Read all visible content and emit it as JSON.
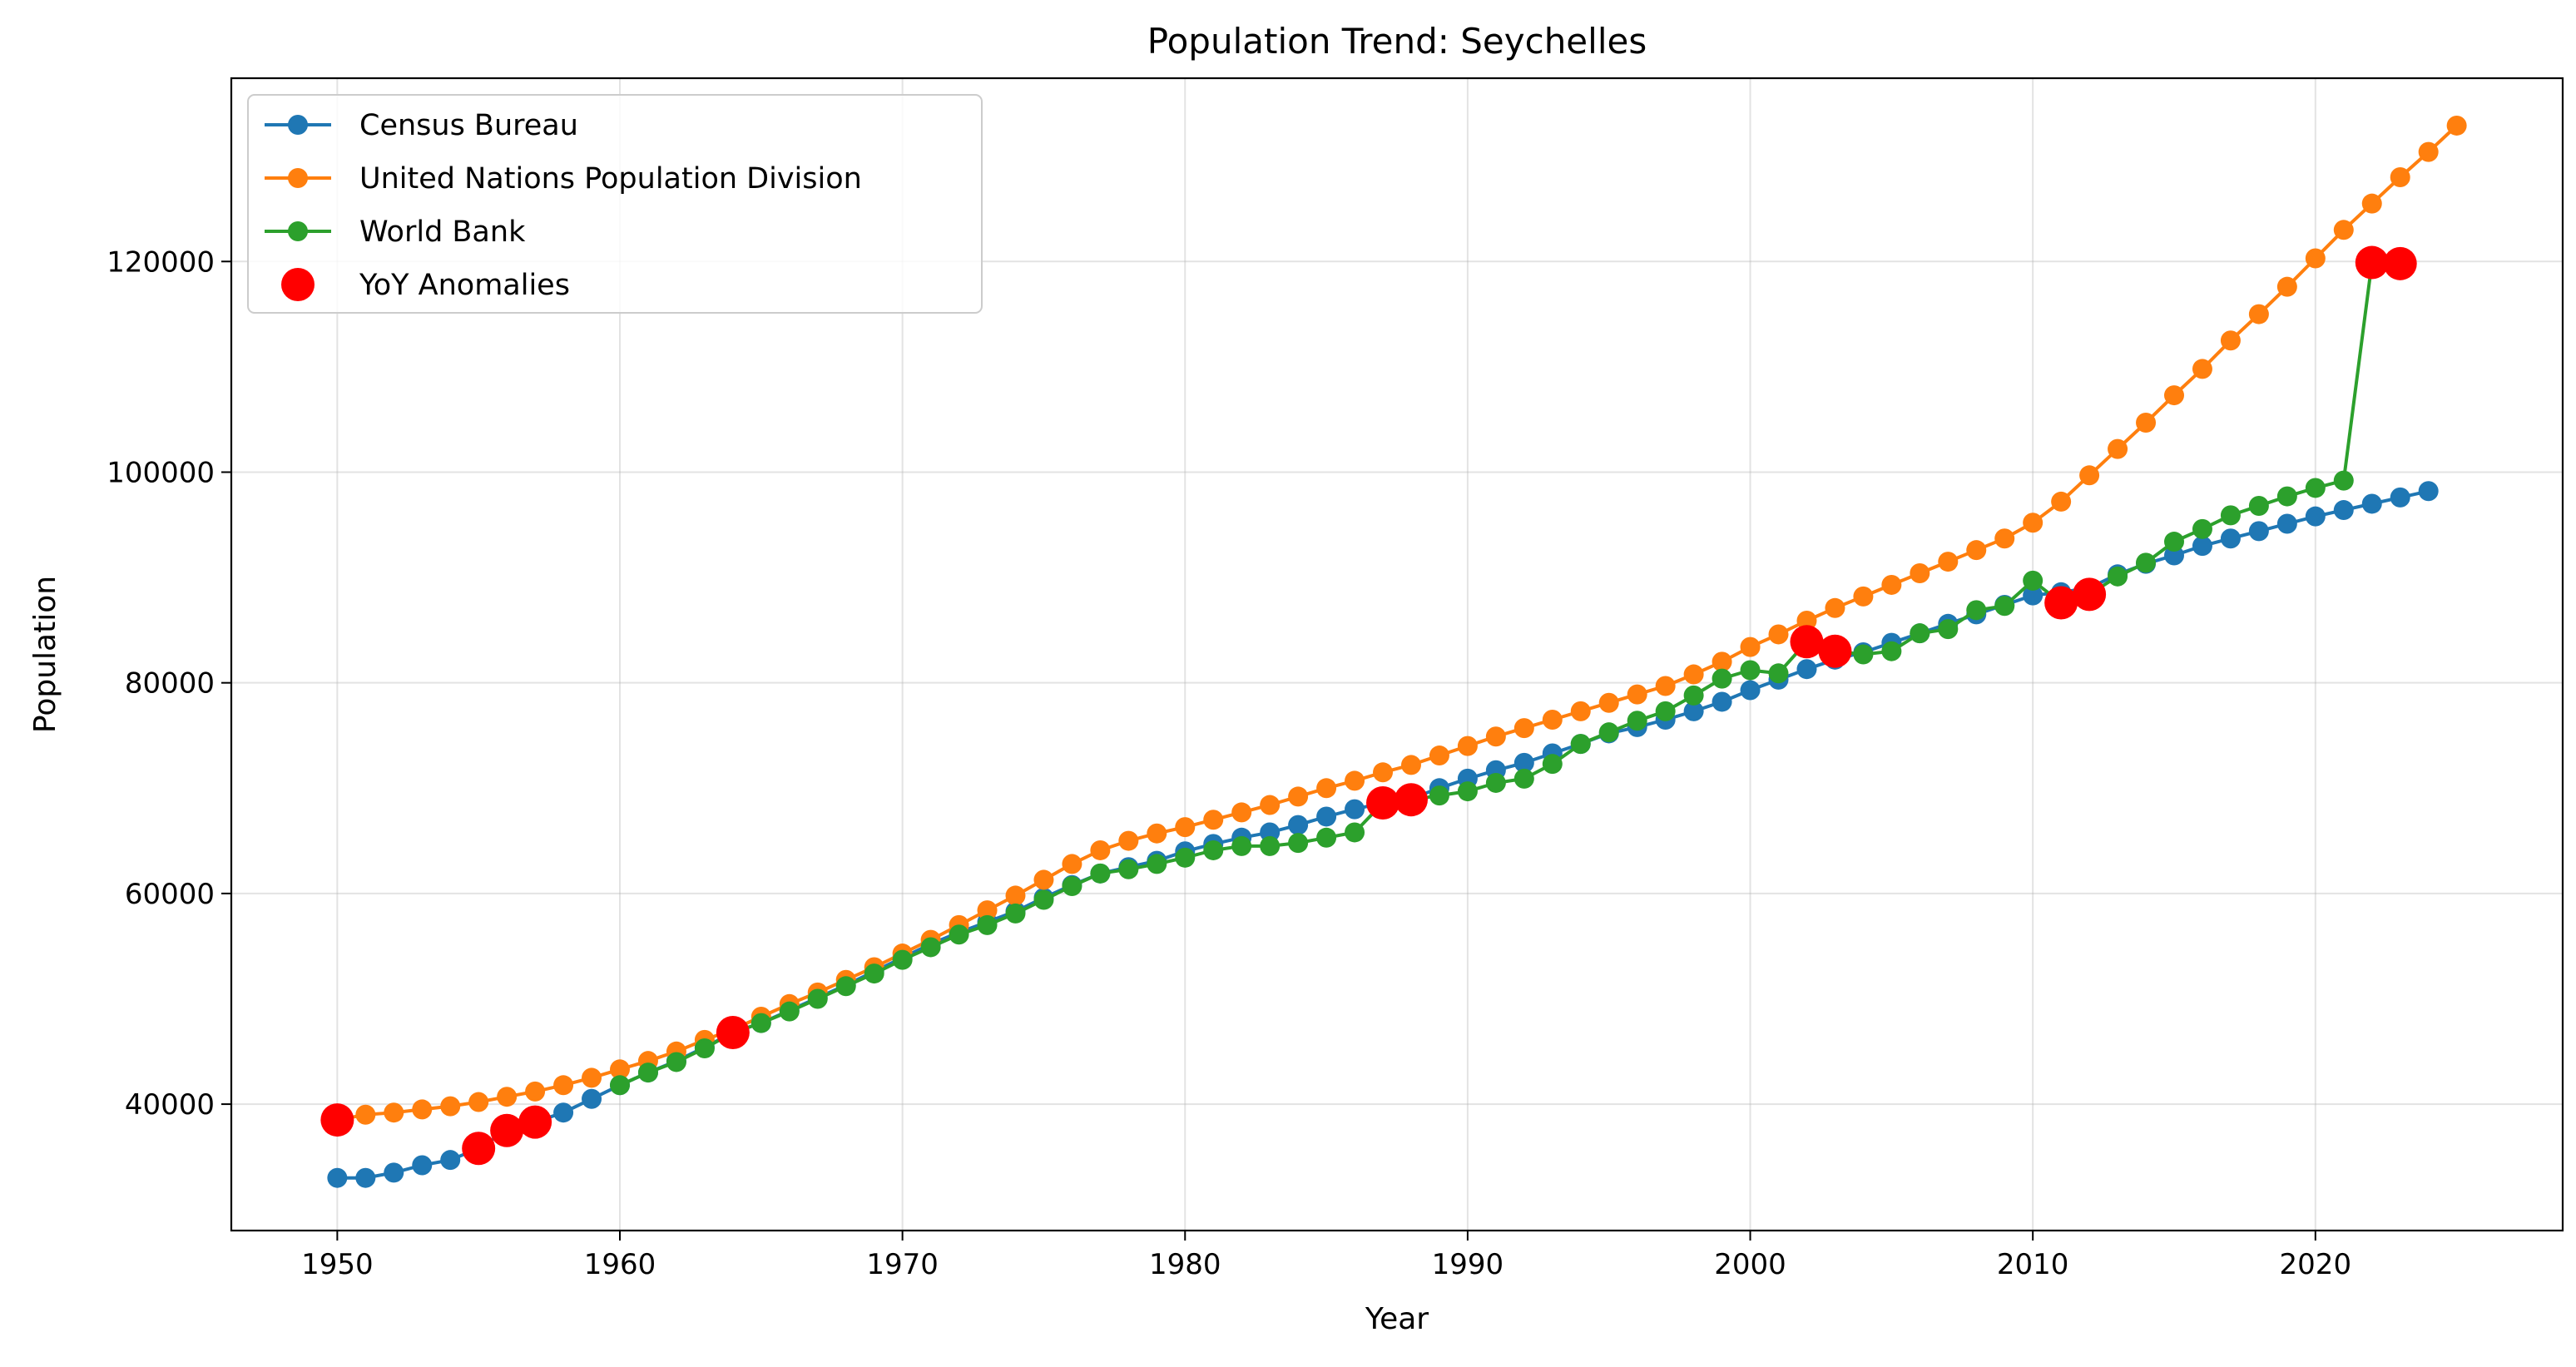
{
  "chart_data": {
    "type": "line",
    "title": "Population Trend: Seychelles",
    "xlabel": "Year",
    "ylabel": "Population",
    "xlim": [
      1946.25,
      2028.75
    ],
    "ylim": [
      28000,
      137400
    ],
    "x_ticks": [
      "1950",
      "1960",
      "1970",
      "1980",
      "1990",
      "2000",
      "2010",
      "2020"
    ],
    "y_ticks": [
      "40000",
      "60000",
      "80000",
      "100000",
      "120000"
    ],
    "grid": true,
    "legend_position": "top-left",
    "series": [
      {
        "name": "Census Bureau",
        "color": "#1f77b4",
        "x": [
          1950,
          1951,
          1952,
          1953,
          1954,
          1955,
          1956,
          1957,
          1958,
          1959,
          1960,
          1961,
          1962,
          1963,
          1964,
          1965,
          1966,
          1967,
          1968,
          1969,
          1970,
          1971,
          1972,
          1973,
          1974,
          1975,
          1976,
          1977,
          1978,
          1979,
          1980,
          1981,
          1982,
          1983,
          1984,
          1985,
          1986,
          1987,
          1988,
          1989,
          1990,
          1991,
          1992,
          1993,
          1994,
          1995,
          1996,
          1997,
          1998,
          1999,
          2000,
          2001,
          2002,
          2003,
          2004,
          2005,
          2006,
          2007,
          2008,
          2009,
          2010,
          2011,
          2012,
          2013,
          2014,
          2015,
          2016,
          2017,
          2018,
          2019,
          2020,
          2021,
          2022,
          2023,
          2024
        ],
        "y": [
          33000,
          33000,
          33500,
          34200,
          34700,
          35800,
          37500,
          38300,
          39200,
          40500,
          41800,
          43000,
          44100,
          45400,
          46800,
          47700,
          48900,
          50100,
          51300,
          52600,
          53900,
          55200,
          56300,
          57300,
          58300,
          59600,
          60800,
          61900,
          62500,
          63100,
          64000,
          64700,
          65300,
          65800,
          66500,
          67300,
          68000,
          68600,
          69000,
          70000,
          70900,
          71700,
          72400,
          73300,
          74200,
          75200,
          75800,
          76500,
          77300,
          78200,
          79300,
          80300,
          81300,
          82200,
          82900,
          83800,
          84700,
          85600,
          86500,
          87400,
          88300,
          88600,
          89000,
          90300,
          91300,
          92100,
          93000,
          93700,
          94400,
          95100,
          95800,
          96400,
          97000,
          97600,
          98200
        ]
      },
      {
        "name": "United Nations Population Division",
        "color": "#ff7f0e",
        "x": [
          1950,
          1951,
          1952,
          1953,
          1954,
          1955,
          1956,
          1957,
          1958,
          1959,
          1960,
          1961,
          1962,
          1963,
          1964,
          1965,
          1966,
          1967,
          1968,
          1969,
          1970,
          1971,
          1972,
          1973,
          1974,
          1975,
          1976,
          1977,
          1978,
          1979,
          1980,
          1981,
          1982,
          1983,
          1984,
          1985,
          1986,
          1987,
          1988,
          1989,
          1990,
          1991,
          1992,
          1993,
          1994,
          1995,
          1996,
          1997,
          1998,
          1999,
          2000,
          2001,
          2002,
          2003,
          2004,
          2005,
          2006,
          2007,
          2008,
          2009,
          2010,
          2011,
          2012,
          2013,
          2014,
          2015,
          2016,
          2017,
          2018,
          2019,
          2020,
          2021,
          2022,
          2023,
          2024,
          2025
        ],
        "y": [
          38500,
          39000,
          39200,
          39500,
          39800,
          40200,
          40700,
          41200,
          41800,
          42500,
          43300,
          44100,
          45000,
          46100,
          47100,
          48300,
          49500,
          50600,
          51800,
          53000,
          54300,
          55600,
          57000,
          58400,
          59800,
          61300,
          62800,
          64100,
          65000,
          65700,
          66300,
          67000,
          67700,
          68400,
          69200,
          70000,
          70700,
          71500,
          72200,
          73100,
          74000,
          74900,
          75700,
          76500,
          77300,
          78100,
          78900,
          79700,
          80800,
          82000,
          83400,
          84600,
          85900,
          87100,
          88200,
          89300,
          90400,
          91500,
          92600,
          93700,
          95200,
          97200,
          99700,
          102200,
          104700,
          107300,
          109800,
          112500,
          115000,
          117600,
          120300,
          123000,
          125500,
          128000,
          130400,
          132900
        ]
      },
      {
        "name": "World Bank",
        "color": "#2ca02c",
        "x": [
          1960,
          1961,
          1962,
          1963,
          1964,
          1965,
          1966,
          1967,
          1968,
          1969,
          1970,
          1971,
          1972,
          1973,
          1974,
          1975,
          1976,
          1977,
          1978,
          1979,
          1980,
          1981,
          1982,
          1983,
          1984,
          1985,
          1986,
          1987,
          1988,
          1989,
          1990,
          1991,
          1992,
          1993,
          1994,
          1995,
          1996,
          1997,
          1998,
          1999,
          2000,
          2001,
          2002,
          2003,
          2004,
          2005,
          2006,
          2007,
          2008,
          2009,
          2010,
          2011,
          2012,
          2013,
          2014,
          2015,
          2016,
          2017,
          2018,
          2019,
          2020,
          2021,
          2022,
          2023
        ],
        "y": [
          41800,
          43000,
          44000,
          45300,
          46800,
          47700,
          48800,
          50000,
          51200,
          52400,
          53700,
          54900,
          56100,
          57000,
          58100,
          59400,
          60700,
          61900,
          62300,
          62800,
          63400,
          64100,
          64500,
          64500,
          64800,
          65300,
          65800,
          68600,
          68900,
          69300,
          69700,
          70500,
          70900,
          72300,
          74200,
          75300,
          76400,
          77300,
          78800,
          80400,
          81200,
          80900,
          83900,
          83000,
          82700,
          83000,
          84700,
          85100,
          86900,
          87300,
          89700,
          87600,
          88400,
          90100,
          91400,
          93400,
          94600,
          95900,
          96800,
          97700,
          98500,
          99200,
          119900,
          119800
        ]
      },
      {
        "name": "YoY Anomalies",
        "color": "#ff0000",
        "x": [
          1950,
          1955,
          1956,
          1957,
          1964,
          1987,
          1988,
          2002,
          2003,
          2011,
          2012,
          2022,
          2023
        ],
        "y": [
          38500,
          35800,
          37500,
          38300,
          46800,
          68600,
          68900,
          83900,
          83000,
          87600,
          88400,
          119900,
          119800
        ]
      }
    ]
  }
}
